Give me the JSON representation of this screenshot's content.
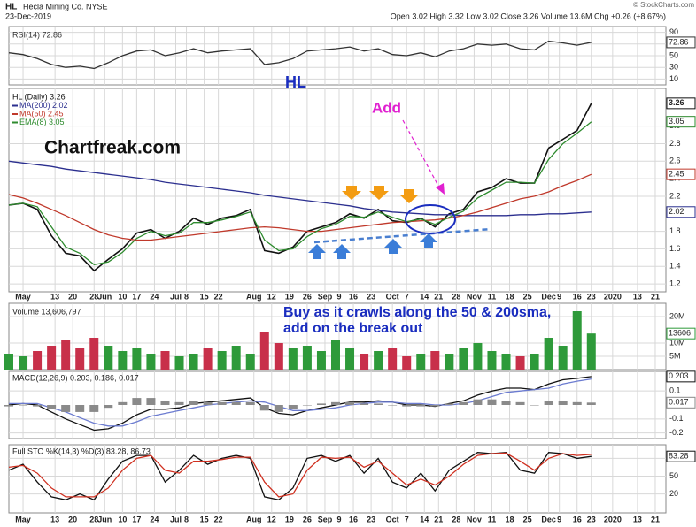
{
  "header": {
    "symbol": "HL",
    "name": "Hecla Mining Co. NYSE",
    "date": "23-Dec-2019",
    "quote": "Open 3.02 High 3.32 Low 3.02 Close 3.26 Volume 13.6M Chg +0.26 (+8.67%)",
    "source": "© StockCharts.com"
  },
  "annotations": {
    "symbol_note": "HL",
    "add": "Add",
    "site": "Chartfreak.com",
    "comment": [
      "Buy as it crawls along the 50 & 200sma,",
      "add on the break out"
    ]
  },
  "chart_data": [
    {
      "type": "line",
      "ylim": [
        0,
        100
      ],
      "yticks": [
        10,
        30,
        50,
        70,
        90
      ],
      "series": [
        {
          "name": "RSI(14) 72.86",
          "color": "#333333",
          "box": true,
          "values": [
            55,
            52,
            45,
            35,
            30,
            32,
            28,
            38,
            50,
            58,
            60,
            50,
            55,
            62,
            55,
            58,
            60,
            62,
            35,
            38,
            45,
            58,
            60,
            62,
            65,
            58,
            62,
            52,
            50,
            55,
            48,
            58,
            62,
            70,
            68,
            70,
            62,
            60,
            75,
            72,
            68,
            72.86
          ]
        }
      ]
    },
    {
      "type": "line",
      "ylim": [
        1.11,
        3.43
      ],
      "yticks": [
        1.2,
        1.4,
        1.6,
        1.8,
        2.2,
        2.4,
        2.6,
        2.8,
        {
          "value": 3,
          "label": "3.0"
        }
      ],
      "xlim": [
        0,
        185
      ],
      "x": [
        0,
        4,
        8,
        12,
        16,
        20,
        24,
        28,
        32,
        36,
        40,
        44,
        48,
        52,
        56,
        60,
        64,
        68,
        72,
        76,
        80,
        84,
        88,
        92,
        96,
        100,
        104,
        108,
        112,
        116,
        120,
        124,
        128,
        132,
        136,
        140,
        144,
        148,
        152,
        156,
        160,
        164
      ],
      "xticks": [
        {
          "value": 4,
          "label": "May"
        },
        {
          "value": 13,
          "label": "13"
        },
        {
          "value": 18,
          "label": "20"
        },
        {
          "value": 24,
          "label": "28"
        },
        {
          "value": 27,
          "label": "Jun"
        },
        {
          "value": 32,
          "label": "10"
        },
        {
          "value": 36,
          "label": "17"
        },
        {
          "value": 41,
          "label": "24"
        },
        {
          "value": 47,
          "label": "Jul"
        },
        {
          "value": 50,
          "label": "8"
        },
        {
          "value": 55,
          "label": "15"
        },
        {
          "value": 59,
          "label": "22"
        },
        {
          "value": 69,
          "label": "Aug"
        },
        {
          "value": 74,
          "label": "12"
        },
        {
          "value": 79,
          "label": "19"
        },
        {
          "value": 84,
          "label": "26"
        },
        {
          "value": 89,
          "label": "Sep"
        },
        {
          "value": 93,
          "label": "9"
        },
        {
          "value": 97,
          "label": "16"
        },
        {
          "value": 102,
          "label": "23"
        },
        {
          "value": 108,
          "label": "Oct"
        },
        {
          "value": 112,
          "label": "7"
        },
        {
          "value": 117,
          "label": "14"
        },
        {
          "value": 121,
          "label": "21"
        },
        {
          "value": 126,
          "label": "28"
        },
        {
          "value": 131,
          "label": "Nov"
        },
        {
          "value": 136,
          "label": "11"
        },
        {
          "value": 141,
          "label": "18"
        },
        {
          "value": 146,
          "label": "25"
        },
        {
          "value": 152,
          "label": "Dec"
        },
        {
          "value": 155,
          "label": "9"
        },
        {
          "value": 160,
          "label": "16"
        },
        {
          "value": 164,
          "label": "23"
        },
        {
          "value": 170,
          "label": "2020"
        },
        {
          "value": 177,
          "label": "13"
        },
        {
          "value": 182,
          "label": "21"
        }
      ],
      "series": [
        {
          "name": "HL (Daily) 3.26",
          "color": "#111111",
          "box": true,
          "values": [
            2.1,
            2.12,
            2.05,
            1.75,
            1.55,
            1.52,
            1.35,
            1.48,
            1.6,
            1.78,
            1.82,
            1.72,
            1.8,
            1.95,
            1.88,
            1.95,
            1.98,
            2.05,
            1.58,
            1.55,
            1.62,
            1.8,
            1.85,
            1.9,
            2.0,
            1.95,
            2.05,
            1.92,
            1.9,
            1.95,
            1.85,
            2.0,
            2.05,
            2.25,
            2.3,
            2.4,
            2.35,
            2.35,
            2.75,
            2.85,
            2.95,
            3.26
          ]
        },
        {
          "name": "MA(200) 2.02",
          "color": "#2b2f8f",
          "box": true,
          "values": [
            2.6,
            2.58,
            2.56,
            2.54,
            2.51,
            2.49,
            2.47,
            2.45,
            2.43,
            2.41,
            2.39,
            2.36,
            2.34,
            2.32,
            2.3,
            2.28,
            2.26,
            2.24,
            2.21,
            2.19,
            2.17,
            2.15,
            2.13,
            2.11,
            2.09,
            2.06,
            2.04,
            2.02,
            2.01,
            2.0,
            1.99,
            1.99,
            1.98,
            1.98,
            1.98,
            1.98,
            1.99,
            1.99,
            2.0,
            2.0,
            2.01,
            2.02
          ]
        },
        {
          "name": "MA(50) 2.45",
          "color": "#c0392b",
          "box": true,
          "values": [
            2.22,
            2.18,
            2.12,
            2.05,
            1.98,
            1.9,
            1.82,
            1.76,
            1.72,
            1.7,
            1.7,
            1.72,
            1.74,
            1.76,
            1.78,
            1.8,
            1.82,
            1.84,
            1.85,
            1.84,
            1.82,
            1.8,
            1.8,
            1.82,
            1.84,
            1.86,
            1.88,
            1.9,
            1.91,
            1.92,
            1.93,
            1.95,
            1.98,
            2.02,
            2.07,
            2.12,
            2.17,
            2.2,
            2.25,
            2.32,
            2.38,
            2.45
          ]
        },
        {
          "name": "EMA(8) 3.05",
          "color": "#2e8b2e",
          "box": true,
          "values": [
            2.1,
            2.12,
            2.08,
            1.85,
            1.62,
            1.55,
            1.42,
            1.45,
            1.56,
            1.72,
            1.8,
            1.75,
            1.78,
            1.9,
            1.9,
            1.93,
            1.97,
            2.02,
            1.7,
            1.58,
            1.6,
            1.74,
            1.83,
            1.88,
            1.97,
            1.96,
            2.02,
            1.96,
            1.91,
            1.94,
            1.88,
            1.96,
            2.03,
            2.18,
            2.27,
            2.36,
            2.36,
            2.35,
            2.62,
            2.8,
            2.92,
            3.05
          ]
        }
      ]
    },
    {
      "type": "bar",
      "ylim": [
        0,
        25000000
      ],
      "yticks": [
        {
          "value": 5000000,
          "label": "5M"
        },
        {
          "value": 10000000,
          "label": "10M"
        },
        {
          "value": 20000000,
          "label": "20M"
        }
      ],
      "series": [
        {
          "name": "Volume 13,606,797",
          "up_color": "#2e9a3a",
          "down_color": "#c8304a",
          "box": true,
          "last_label": "13606",
          "values": [
            6000000,
            5000000,
            7000000,
            9000000,
            11000000,
            8000000,
            12000000,
            9000000,
            7000000,
            8000000,
            6000000,
            7000000,
            5000000,
            6000000,
            8000000,
            7000000,
            9000000,
            6000000,
            14000000,
            10000000,
            8000000,
            9000000,
            7000000,
            11000000,
            8000000,
            6000000,
            7000000,
            8000000,
            5000000,
            6000000,
            7000000,
            6000000,
            8000000,
            10000000,
            7000000,
            6000000,
            5000000,
            6000000,
            12000000,
            9000000,
            22000000,
            13606797
          ]
        }
      ]
    },
    {
      "type": "line",
      "label": "MACD(12,26,9) 0.203, 0.186, 0.017",
      "ylim": [
        -0.24,
        0.24
      ],
      "yticks": [
        -0.2,
        -0.1,
        0.1
      ],
      "series": [
        {
          "color": "#111111",
          "box": true,
          "values": [
            0.0,
            0.01,
            0.0,
            -0.05,
            -0.1,
            -0.14,
            -0.18,
            -0.17,
            -0.13,
            -0.07,
            -0.03,
            -0.03,
            -0.02,
            0.01,
            0.02,
            0.03,
            0.04,
            0.05,
            -0.02,
            -0.06,
            -0.07,
            -0.04,
            -0.02,
            0.0,
            0.02,
            0.02,
            0.03,
            0.02,
            0.0,
            0.0,
            -0.01,
            0.01,
            0.03,
            0.07,
            0.1,
            0.12,
            0.12,
            0.11,
            0.15,
            0.18,
            0.19,
            0.203
          ]
        },
        {
          "color": "#6b7bd0",
          "values": [
            0.01,
            0.01,
            0.01,
            -0.02,
            -0.05,
            -0.09,
            -0.13,
            -0.15,
            -0.15,
            -0.12,
            -0.08,
            -0.06,
            -0.04,
            -0.02,
            0.0,
            0.01,
            0.02,
            0.03,
            0.02,
            -0.01,
            -0.04,
            -0.04,
            -0.03,
            -0.02,
            0.0,
            0.01,
            0.02,
            0.02,
            0.01,
            0.01,
            0.0,
            0.0,
            0.01,
            0.03,
            0.06,
            0.09,
            0.1,
            0.11,
            0.12,
            0.15,
            0.17,
            0.186
          ]
        },
        {
          "color": "#8a8a8a",
          "style": "histogram",
          "box": true,
          "values": [
            -0.01,
            0,
            -0.01,
            -0.03,
            -0.05,
            -0.05,
            -0.05,
            -0.02,
            0.02,
            0.05,
            0.05,
            0.03,
            0.02,
            0.03,
            0.02,
            0.02,
            0.02,
            0.02,
            -0.04,
            -0.05,
            -0.03,
            0,
            0.01,
            0.02,
            0.02,
            0.01,
            0.01,
            0,
            -0.01,
            -0.01,
            -0.01,
            0.01,
            0.02,
            0.04,
            0.04,
            0.03,
            0.02,
            0,
            0.03,
            0.03,
            0.02,
            0.017
          ]
        }
      ]
    },
    {
      "type": "line",
      "label": "Full STO %K(14,3) %D(3) 83.28, 86.73",
      "ylim": [
        -12,
        103
      ],
      "yticks": [
        20,
        50,
        80
      ],
      "series": [
        {
          "color": "#111111",
          "box": true,
          "values": [
            60,
            70,
            40,
            15,
            10,
            20,
            10,
            45,
            75,
            85,
            85,
            40,
            60,
            85,
            70,
            80,
            85,
            80,
            15,
            10,
            30,
            80,
            85,
            75,
            85,
            55,
            80,
            40,
            30,
            55,
            25,
            60,
            75,
            90,
            88,
            90,
            60,
            55,
            90,
            88,
            80,
            83.28
          ]
        },
        {
          "color": "#d03020",
          "values": [
            65,
            68,
            55,
            30,
            15,
            15,
            15,
            30,
            60,
            80,
            85,
            60,
            55,
            75,
            75,
            78,
            82,
            82,
            40,
            15,
            20,
            60,
            82,
            80,
            82,
            65,
            75,
            55,
            35,
            45,
            35,
            50,
            70,
            85,
            88,
            89,
            75,
            60,
            80,
            88,
            85,
            86.73
          ]
        }
      ]
    }
  ]
}
